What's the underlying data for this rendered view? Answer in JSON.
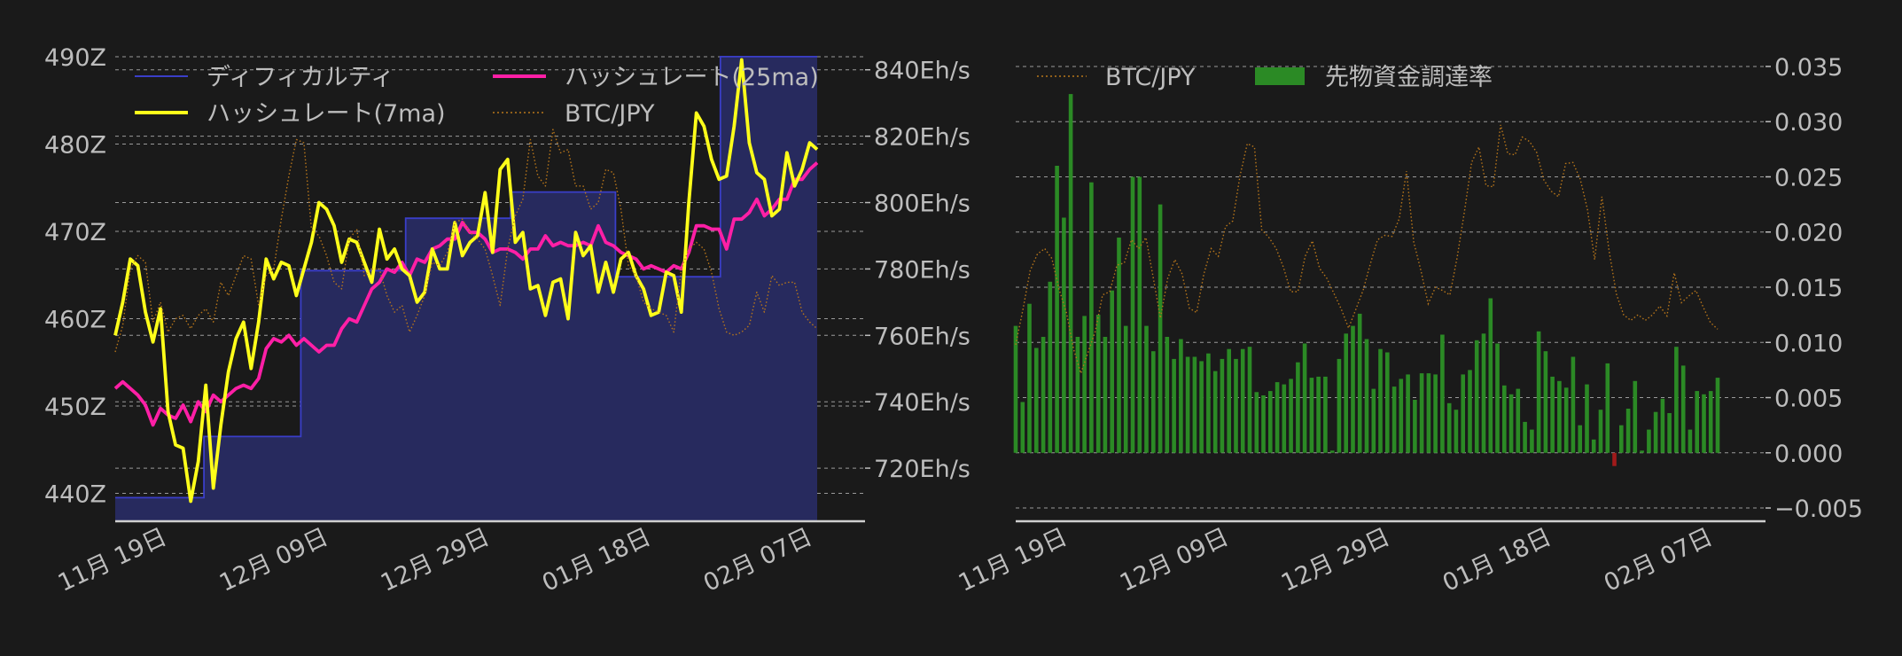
{
  "chart_data": [
    {
      "type": "line",
      "x_ticks": [
        "11月 19日",
        "12月 09日",
        "12月 29日",
        "01月 18日",
        "02月 07日"
      ],
      "x_tick_dates": [
        "2023-11-19",
        "2023-12-09",
        "2023-12-29",
        "2024-01-18",
        "2024-02-07"
      ],
      "x_range": [
        "2023-11-19",
        "2024-02-14"
      ],
      "left_axis": {
        "ticks": [
          "440Z",
          "450Z",
          "460Z",
          "470Z",
          "480Z",
          "490Z"
        ],
        "tick_values": [
          440,
          450,
          460,
          470,
          480,
          490
        ],
        "range": [
          436.8,
          490.4
        ],
        "unit": "Z"
      },
      "right_axis": {
        "ticks": [
          "720Eh/s",
          "740Eh/s",
          "760Eh/s",
          "780Eh/s",
          "800Eh/s",
          "820Eh/s",
          "840Eh/s"
        ],
        "tick_values": [
          720,
          740,
          760,
          780,
          800,
          820,
          840
        ],
        "range": [
          704,
          845
        ],
        "unit": "Eh/s"
      },
      "grid": true,
      "legend_position": "top",
      "legend": [
        "ディフィカルティ",
        "ハッシュレート(25ma)",
        "ハッシュレート(7ma)",
        "BTC/JPY"
      ],
      "series": [
        {
          "name": "ディフィカルティ",
          "axis": "left",
          "style": "step-area",
          "color": "#3a3ec8",
          "fill": "#272a5e",
          "points": [
            [
              "2023-11-19",
              439.5
            ],
            [
              "2023-11-30",
              439.5
            ],
            [
              "2023-11-30",
              446.5
            ],
            [
              "2023-12-12",
              446.5
            ],
            [
              "2023-12-12",
              465.5
            ],
            [
              "2023-12-25",
              465.5
            ],
            [
              "2023-12-25",
              471.5
            ],
            [
              "2024-01-07",
              471.5
            ],
            [
              "2024-01-07",
              474.5
            ],
            [
              "2024-01-20",
              474.5
            ],
            [
              "2024-01-20",
              464.8
            ],
            [
              "2024-02-02",
              464.8
            ],
            [
              "2024-02-02",
              490.0
            ],
            [
              "2024-02-14",
              490.0
            ]
          ]
        },
        {
          "name": "ハッシュレート(25ma)",
          "axis": "right",
          "style": "line",
          "color": "#ff1fa6",
          "y": [
            744,
            746,
            744,
            742,
            739,
            733,
            738,
            736,
            735,
            739,
            734,
            740,
            737,
            742,
            740,
            742,
            744,
            745,
            744,
            747,
            756,
            759,
            758,
            760,
            757,
            759,
            757,
            755,
            757,
            757,
            762,
            765,
            764,
            769,
            774,
            776,
            780,
            779,
            782,
            778,
            783,
            782,
            786,
            787,
            789,
            789,
            794,
            791,
            791,
            789,
            785,
            786,
            786,
            785,
            783,
            786,
            786,
            790,
            787,
            788,
            787,
            787,
            788,
            787,
            793,
            788,
            787,
            785,
            784,
            783,
            780,
            781,
            780,
            779,
            781,
            780,
            785,
            793,
            793,
            792,
            792,
            786,
            795,
            795,
            797,
            801,
            796,
            798,
            801,
            801,
            807,
            807,
            810,
            812
          ]
        },
        {
          "name": "ハッシュレート(7ma)",
          "axis": "right",
          "style": "line",
          "color": "#ffff1a",
          "y": [
            760,
            770,
            783,
            781,
            767,
            758,
            768,
            737,
            727,
            726,
            710,
            722,
            745,
            714,
            733,
            749,
            759,
            764,
            750,
            764,
            783,
            777,
            782,
            781,
            772,
            780,
            788,
            800,
            798,
            793,
            782,
            789,
            788,
            782,
            776,
            792,
            783,
            786,
            780,
            778,
            770,
            773,
            786,
            780,
            780,
            794,
            784,
            788,
            790,
            803,
            785,
            810,
            813,
            788,
            791,
            774,
            775,
            766,
            776,
            777,
            765,
            791,
            784,
            787,
            773,
            782,
            773,
            783,
            785,
            778,
            774,
            766,
            767,
            779,
            778,
            767,
            800,
            827,
            823,
            813,
            807,
            808,
            823,
            843,
            818,
            809,
            807,
            796,
            798,
            815,
            805,
            810,
            818,
            816
          ]
        },
        {
          "name": "BTC/JPY",
          "axis": "right",
          "style": "dotted",
          "color": "#b8761a",
          "y": [
            755,
            763,
            780,
            784,
            782,
            764,
            770,
            761,
            765,
            766,
            762,
            766,
            768,
            764,
            776,
            772,
            778,
            784,
            783,
            769,
            778,
            780,
            795,
            808,
            819,
            818,
            792,
            790,
            784,
            776,
            774,
            789,
            792,
            778,
            780,
            780,
            772,
            767,
            769,
            761,
            766,
            772,
            782,
            781,
            785,
            794,
            795,
            791,
            789,
            786,
            778,
            769,
            786,
            796,
            801,
            819,
            808,
            805,
            822,
            815,
            816,
            805,
            805,
            798,
            800,
            810,
            809,
            798,
            781,
            778,
            770,
            768,
            767,
            766,
            761,
            780,
            786,
            788,
            786,
            779,
            768,
            761,
            760,
            761,
            763,
            773,
            767,
            778,
            775,
            776,
            776,
            767,
            764,
            762
          ]
        }
      ]
    },
    {
      "type": "bar",
      "x_ticks": [
        "11月 19日",
        "12月 09日",
        "12月 29日",
        "01月 18日",
        "02月 07日"
      ],
      "x_tick_dates": [
        "2023-11-19",
        "2023-12-09",
        "2023-12-29",
        "2024-01-18",
        "2024-02-07"
      ],
      "x_range": [
        "2023-11-19",
        "2024-02-14"
      ],
      "right_axis": {
        "ticks": [
          "−0.005",
          "0.000",
          "0.005",
          "0.010",
          "0.015",
          "0.020",
          "0.025",
          "0.030",
          "0.035"
        ],
        "tick_values": [
          -0.005,
          0,
          0.005,
          0.01,
          0.015,
          0.02,
          0.025,
          0.03,
          0.035
        ],
        "range": [
          -0.0062,
          0.0362
        ]
      },
      "grid": true,
      "legend_position": "top",
      "legend": [
        "BTC/JPY",
        "先物資金調達率"
      ],
      "series": [
        {
          "name": "先物資金調達率",
          "axis": "right",
          "style": "bar",
          "color": "#2b8a25",
          "negative_color": "#a11a1a",
          "values": [
            0.0115,
            0.0046,
            0.0135,
            0.0095,
            0.0105,
            0.0155,
            0.026,
            0.0213,
            0.0325,
            0.0105,
            0.0124,
            0.0245,
            0.0125,
            0.0105,
            0.0147,
            0.0195,
            0.0115,
            0.025,
            0.025,
            0.0115,
            0.0092,
            0.0225,
            0.0105,
            0.0085,
            0.0103,
            0.0087,
            0.0087,
            0.0083,
            0.009,
            0.0074,
            0.0085,
            0.0094,
            0.0085,
            0.0094,
            0.0096,
            0.0055,
            0.0052,
            0.0056,
            0.0064,
            0.0062,
            0.0067,
            0.0082,
            0.0099,
            0.0068,
            0.0069,
            0.0069,
            0.0002,
            0.0085,
            0.0108,
            0.0115,
            0.0126,
            0.0103,
            0.0058,
            0.0094,
            0.0091,
            0.006,
            0.0067,
            0.0071,
            0.0048,
            0.0072,
            0.0072,
            0.0071,
            0.0107,
            0.0045,
            0.0039,
            0.0071,
            0.0075,
            0.0102,
            0.0108,
            0.014,
            0.0099,
            0.0061,
            0.0053,
            0.0058,
            0.0028,
            0.0021,
            0.011,
            0.0092,
            0.0069,
            0.0065,
            0.0059,
            0.0087,
            0.0025,
            0.0062,
            0.0012,
            0.0039,
            0.0081,
            -0.0012,
            0.0025,
            0.004,
            0.0065,
            0.0002,
            0.0021,
            0.0037,
            0.0049,
            0.0036,
            0.0096,
            0.0079,
            0.0021,
            0.0056,
            0.0053,
            0.0056,
            0.0068
          ]
        },
        {
          "name": "BTC/JPY",
          "axis": "right",
          "style": "dotted",
          "color": "#b8761a",
          "y": [
            0.0098,
            0.013,
            0.0165,
            0.018,
            0.0185,
            0.0176,
            0.0148,
            0.0127,
            0.0094,
            0.0072,
            0.0091,
            0.011,
            0.0143,
            0.0146,
            0.017,
            0.0172,
            0.0193,
            0.0185,
            0.0195,
            0.0159,
            0.0122,
            0.0158,
            0.0175,
            0.0162,
            0.0131,
            0.0127,
            0.0162,
            0.0185,
            0.0178,
            0.0205,
            0.021,
            0.0251,
            0.028,
            0.0277,
            0.0202,
            0.0195,
            0.0185,
            0.0168,
            0.0146,
            0.0146,
            0.0178,
            0.0192,
            0.0167,
            0.0158,
            0.0144,
            0.013,
            0.0113,
            0.013,
            0.0147,
            0.0171,
            0.0193,
            0.0197,
            0.0196,
            0.0212,
            0.0255,
            0.0191,
            0.0165,
            0.0135,
            0.015,
            0.0147,
            0.0143,
            0.0177,
            0.0218,
            0.0263,
            0.0277,
            0.0242,
            0.0241,
            0.0297,
            0.0271,
            0.027,
            0.0286,
            0.0282,
            0.0272,
            0.0247,
            0.0237,
            0.0232,
            0.0262,
            0.0263,
            0.0248,
            0.0221,
            0.0175,
            0.0232,
            0.0183,
            0.0144,
            0.0125,
            0.012,
            0.0125,
            0.012,
            0.0125,
            0.0133,
            0.0124,
            0.0163,
            0.0136,
            0.0142,
            0.0147,
            0.0132,
            0.0118,
            0.0112
          ]
        }
      ]
    }
  ]
}
